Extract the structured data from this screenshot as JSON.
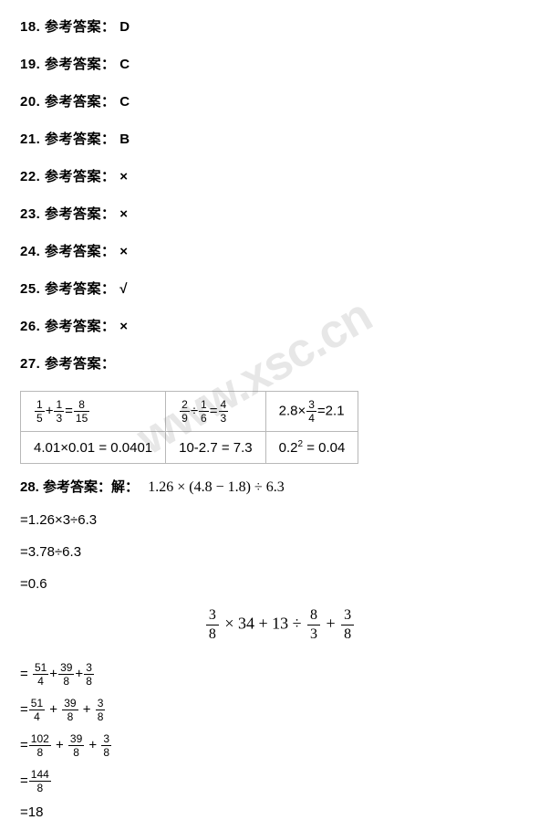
{
  "answers": [
    {
      "num": "18.",
      "label": "参考答案：",
      "value": "D"
    },
    {
      "num": "19.",
      "label": "参考答案：",
      "value": "C"
    },
    {
      "num": "20.",
      "label": "参考答案：",
      "value": "C"
    },
    {
      "num": "21.",
      "label": "参考答案：",
      "value": "B"
    },
    {
      "num": "22.",
      "label": "参考答案：",
      "value": "×"
    },
    {
      "num": "23.",
      "label": "参考答案：",
      "value": "×"
    },
    {
      "num": "24.",
      "label": "参考答案：",
      "value": "×"
    },
    {
      "num": "25.",
      "label": "参考答案：",
      "value": "√"
    },
    {
      "num": "26.",
      "label": "参考答案：",
      "value": "×"
    }
  ],
  "q27": {
    "heading_num": "27.",
    "heading_label": "参考答案：",
    "table": {
      "rows": [
        [
          {
            "type": "frac_eq",
            "parts": [
              "1",
              "5",
              "+",
              "1",
              "3",
              "=",
              "8",
              "15"
            ]
          },
          {
            "type": "frac_eq",
            "parts": [
              "2",
              "9",
              "÷",
              "1",
              "6",
              "=",
              "4",
              "3"
            ]
          },
          {
            "type": "mix",
            "text_pre": "2.8×",
            "frac": [
              "3",
              "4"
            ],
            "text_post": "=2.1"
          }
        ],
        [
          {
            "type": "plain",
            "text": "4.01×0.01 = 0.0401"
          },
          {
            "type": "plain",
            "text": "10-2.7 = 7.3"
          },
          {
            "type": "sq",
            "base": "0.2",
            "exp": "2",
            "rhs": " = 0.04"
          }
        ]
      ]
    }
  },
  "q28": {
    "heading_num": "28.",
    "heading_label": "参考答案：解：",
    "expr1": "1.26 × (4.8 − 1.8) ÷ 6.3",
    "steps1": [
      "=1.26×3÷6.3",
      "=3.78÷6.3",
      "=0.6"
    ],
    "center": {
      "f1": [
        "3",
        "8"
      ],
      "t1": " × 34 + 13 ÷ ",
      "f2": [
        "8",
        "3"
      ],
      "t2": " + ",
      "f3": [
        "3",
        "8"
      ]
    },
    "steps2": [
      {
        "eq": "= ",
        "fracs": [
          [
            "51",
            "4"
          ],
          [
            "39",
            "8"
          ],
          [
            "3",
            "8"
          ]
        ],
        "ops": [
          "+",
          "+"
        ]
      },
      {
        "eq": "=",
        "fracs": [
          [
            "51",
            "4"
          ],
          [
            "39",
            "8"
          ],
          [
            "3",
            "8"
          ]
        ],
        "ops": [
          " + ",
          " + "
        ]
      },
      {
        "eq": "=",
        "fracs": [
          [
            "102",
            "8"
          ],
          [
            "39",
            "8"
          ],
          [
            "3",
            "8"
          ]
        ],
        "ops": [
          " + ",
          " + "
        ]
      },
      {
        "eq": "=",
        "fracs": [
          [
            "144",
            "8"
          ]
        ],
        "ops": []
      }
    ],
    "final": "=18"
  },
  "watermark": "www.xsc.cn",
  "colors": {
    "text": "#000000",
    "border": "#b8b8b8",
    "bg": "#ffffff",
    "watermark": "rgba(120,120,120,0.18)"
  }
}
